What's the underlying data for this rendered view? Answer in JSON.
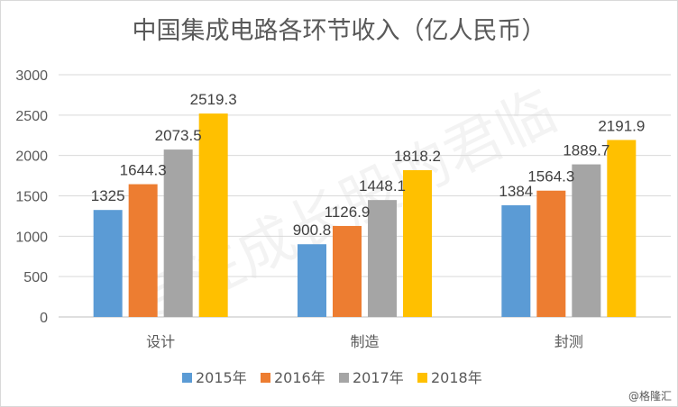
{
  "chart_data": {
    "type": "bar",
    "title": "中国集成电路各环节收入（亿人民币）",
    "categories": [
      "设计",
      "制造",
      "封测"
    ],
    "series": [
      {
        "name": "2015年",
        "color": "#5b9bd5",
        "values": [
          1325,
          900.8,
          1384
        ]
      },
      {
        "name": "2016年",
        "color": "#ed7d31",
        "values": [
          1644.3,
          1126.9,
          1564.3
        ]
      },
      {
        "name": "2017年",
        "color": "#a5a5a5",
        "values": [
          2073.5,
          1448.1,
          1889.7
        ]
      },
      {
        "name": "2018年",
        "color": "#ffc000",
        "values": [
          2519.3,
          1818.2,
          2191.9
        ]
      }
    ],
    "value_labels": [
      [
        "1325",
        "900.8",
        "1384"
      ],
      [
        "1644.3",
        "1126.9",
        "1564.3"
      ],
      [
        "2073.5",
        "1448.1",
        "1889.7"
      ],
      [
        "2519.3",
        "1818.2",
        "2191.9"
      ]
    ],
    "ylim": [
      0,
      3000
    ],
    "yticks": [
      "0",
      "500",
      "1000",
      "1500",
      "2000",
      "2500",
      "3000"
    ],
    "grid": true,
    "legend_position": "bottom"
  },
  "watermark": "专注成长股的君临",
  "credit": "@格隆汇"
}
